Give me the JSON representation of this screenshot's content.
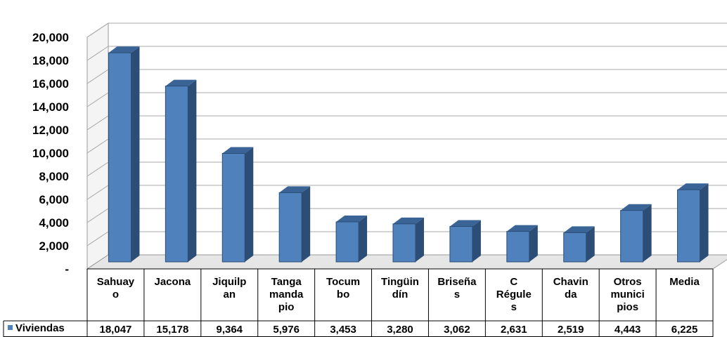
{
  "chart_data": {
    "type": "bar",
    "style": "3d-column-with-data-table",
    "categories": [
      "Sahuayo",
      "Jacona",
      "Jiquilpan",
      "Tangamandapio",
      "Tocumbo",
      "Tingüindín",
      "Briseñas",
      "C Régules",
      "Chavinda",
      "Otros municipios",
      "Media"
    ],
    "category_label_lines": [
      [
        "Sahuay",
        "o"
      ],
      [
        "Jacona"
      ],
      [
        "Jiquilp",
        "an"
      ],
      [
        "Tanga",
        "manda",
        "pio"
      ],
      [
        "Tocum",
        "bo"
      ],
      [
        "Tingüin",
        "dín"
      ],
      [
        "Briseña",
        "s"
      ],
      [
        "C",
        "Régule",
        "s"
      ],
      [
        "Chavin",
        "da"
      ],
      [
        "Otros",
        "munici",
        "pios"
      ],
      [
        "Media"
      ]
    ],
    "series": [
      {
        "name": "Viviendas",
        "color": "#4F81BD",
        "values": [
          18047,
          15178,
          9364,
          5976,
          3453,
          3280,
          3062,
          2631,
          2519,
          4443,
          6225
        ],
        "value_labels": [
          "18,047",
          "15,178",
          "9,364",
          "5,976",
          "3,453",
          "3,280",
          "3,062",
          "2,631",
          "2,519",
          "4,443",
          "6,225"
        ]
      }
    ],
    "ylim": [
      0,
      20000
    ],
    "yticks": [
      0,
      2000,
      4000,
      6000,
      8000,
      10000,
      12000,
      14000,
      16000,
      18000,
      20000
    ],
    "ytick_labels": [
      "-",
      "2,000",
      "4,000",
      "6,000",
      "8,000",
      "10,000",
      "12,000",
      "14,000",
      "16,000",
      "18,000",
      "20,000"
    ],
    "grid": true,
    "legend": "data-table-left",
    "title": "",
    "xlabel": "",
    "ylabel": ""
  }
}
